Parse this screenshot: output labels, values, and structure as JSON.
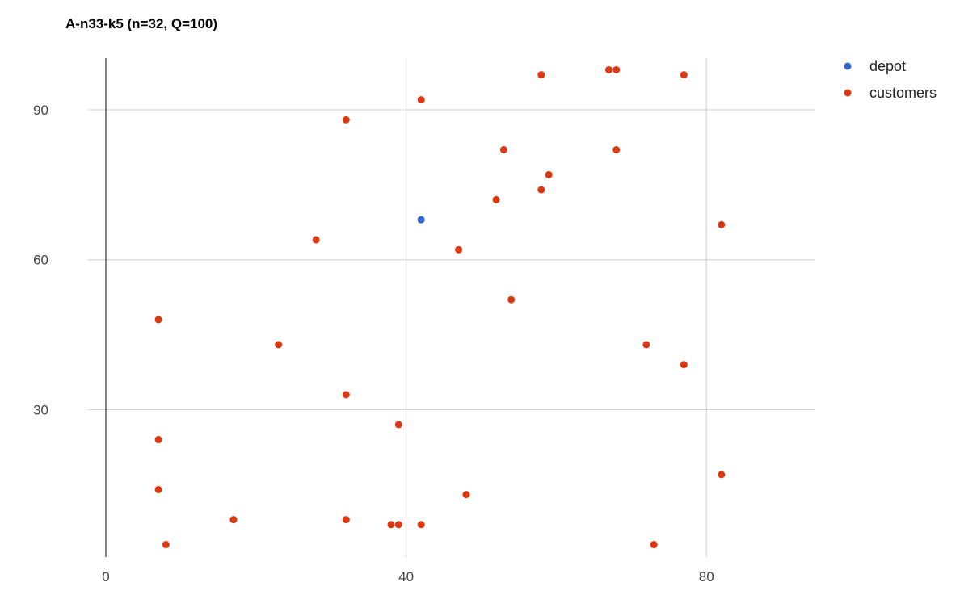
{
  "chart_data": {
    "type": "scatter",
    "title": "A-n33-k5 (n=32, Q=100)",
    "xlabel": "",
    "ylabel": "",
    "xlim": [
      -3,
      95
    ],
    "ylim": [
      0,
      102
    ],
    "x_ticks": [
      0,
      40,
      80
    ],
    "y_ticks": [
      30,
      60,
      90
    ],
    "grid": true,
    "legend_position": "right",
    "series": [
      {
        "name": "depot",
        "color": "#3366cc",
        "points": [
          [
            42,
            68
          ]
        ]
      },
      {
        "name": "customers",
        "color": "#dc3912",
        "points": [
          [
            58,
            97
          ],
          [
            67,
            98
          ],
          [
            68,
            98
          ],
          [
            77,
            97
          ],
          [
            42,
            92
          ],
          [
            32,
            88
          ],
          [
            53,
            82
          ],
          [
            68,
            82
          ],
          [
            59,
            77
          ],
          [
            58,
            74
          ],
          [
            52,
            72
          ],
          [
            82,
            67
          ],
          [
            28,
            64
          ],
          [
            47,
            62
          ],
          [
            54,
            52
          ],
          [
            7,
            48
          ],
          [
            23,
            43
          ],
          [
            72,
            43
          ],
          [
            77,
            39
          ],
          [
            32,
            33
          ],
          [
            39,
            27
          ],
          [
            7,
            24
          ],
          [
            82,
            17
          ],
          [
            7,
            14
          ],
          [
            48,
            13
          ],
          [
            17,
            8
          ],
          [
            32,
            8
          ],
          [
            38,
            7
          ],
          [
            39,
            7
          ],
          [
            42,
            7
          ],
          [
            8,
            3
          ],
          [
            73,
            3
          ]
        ]
      }
    ]
  }
}
